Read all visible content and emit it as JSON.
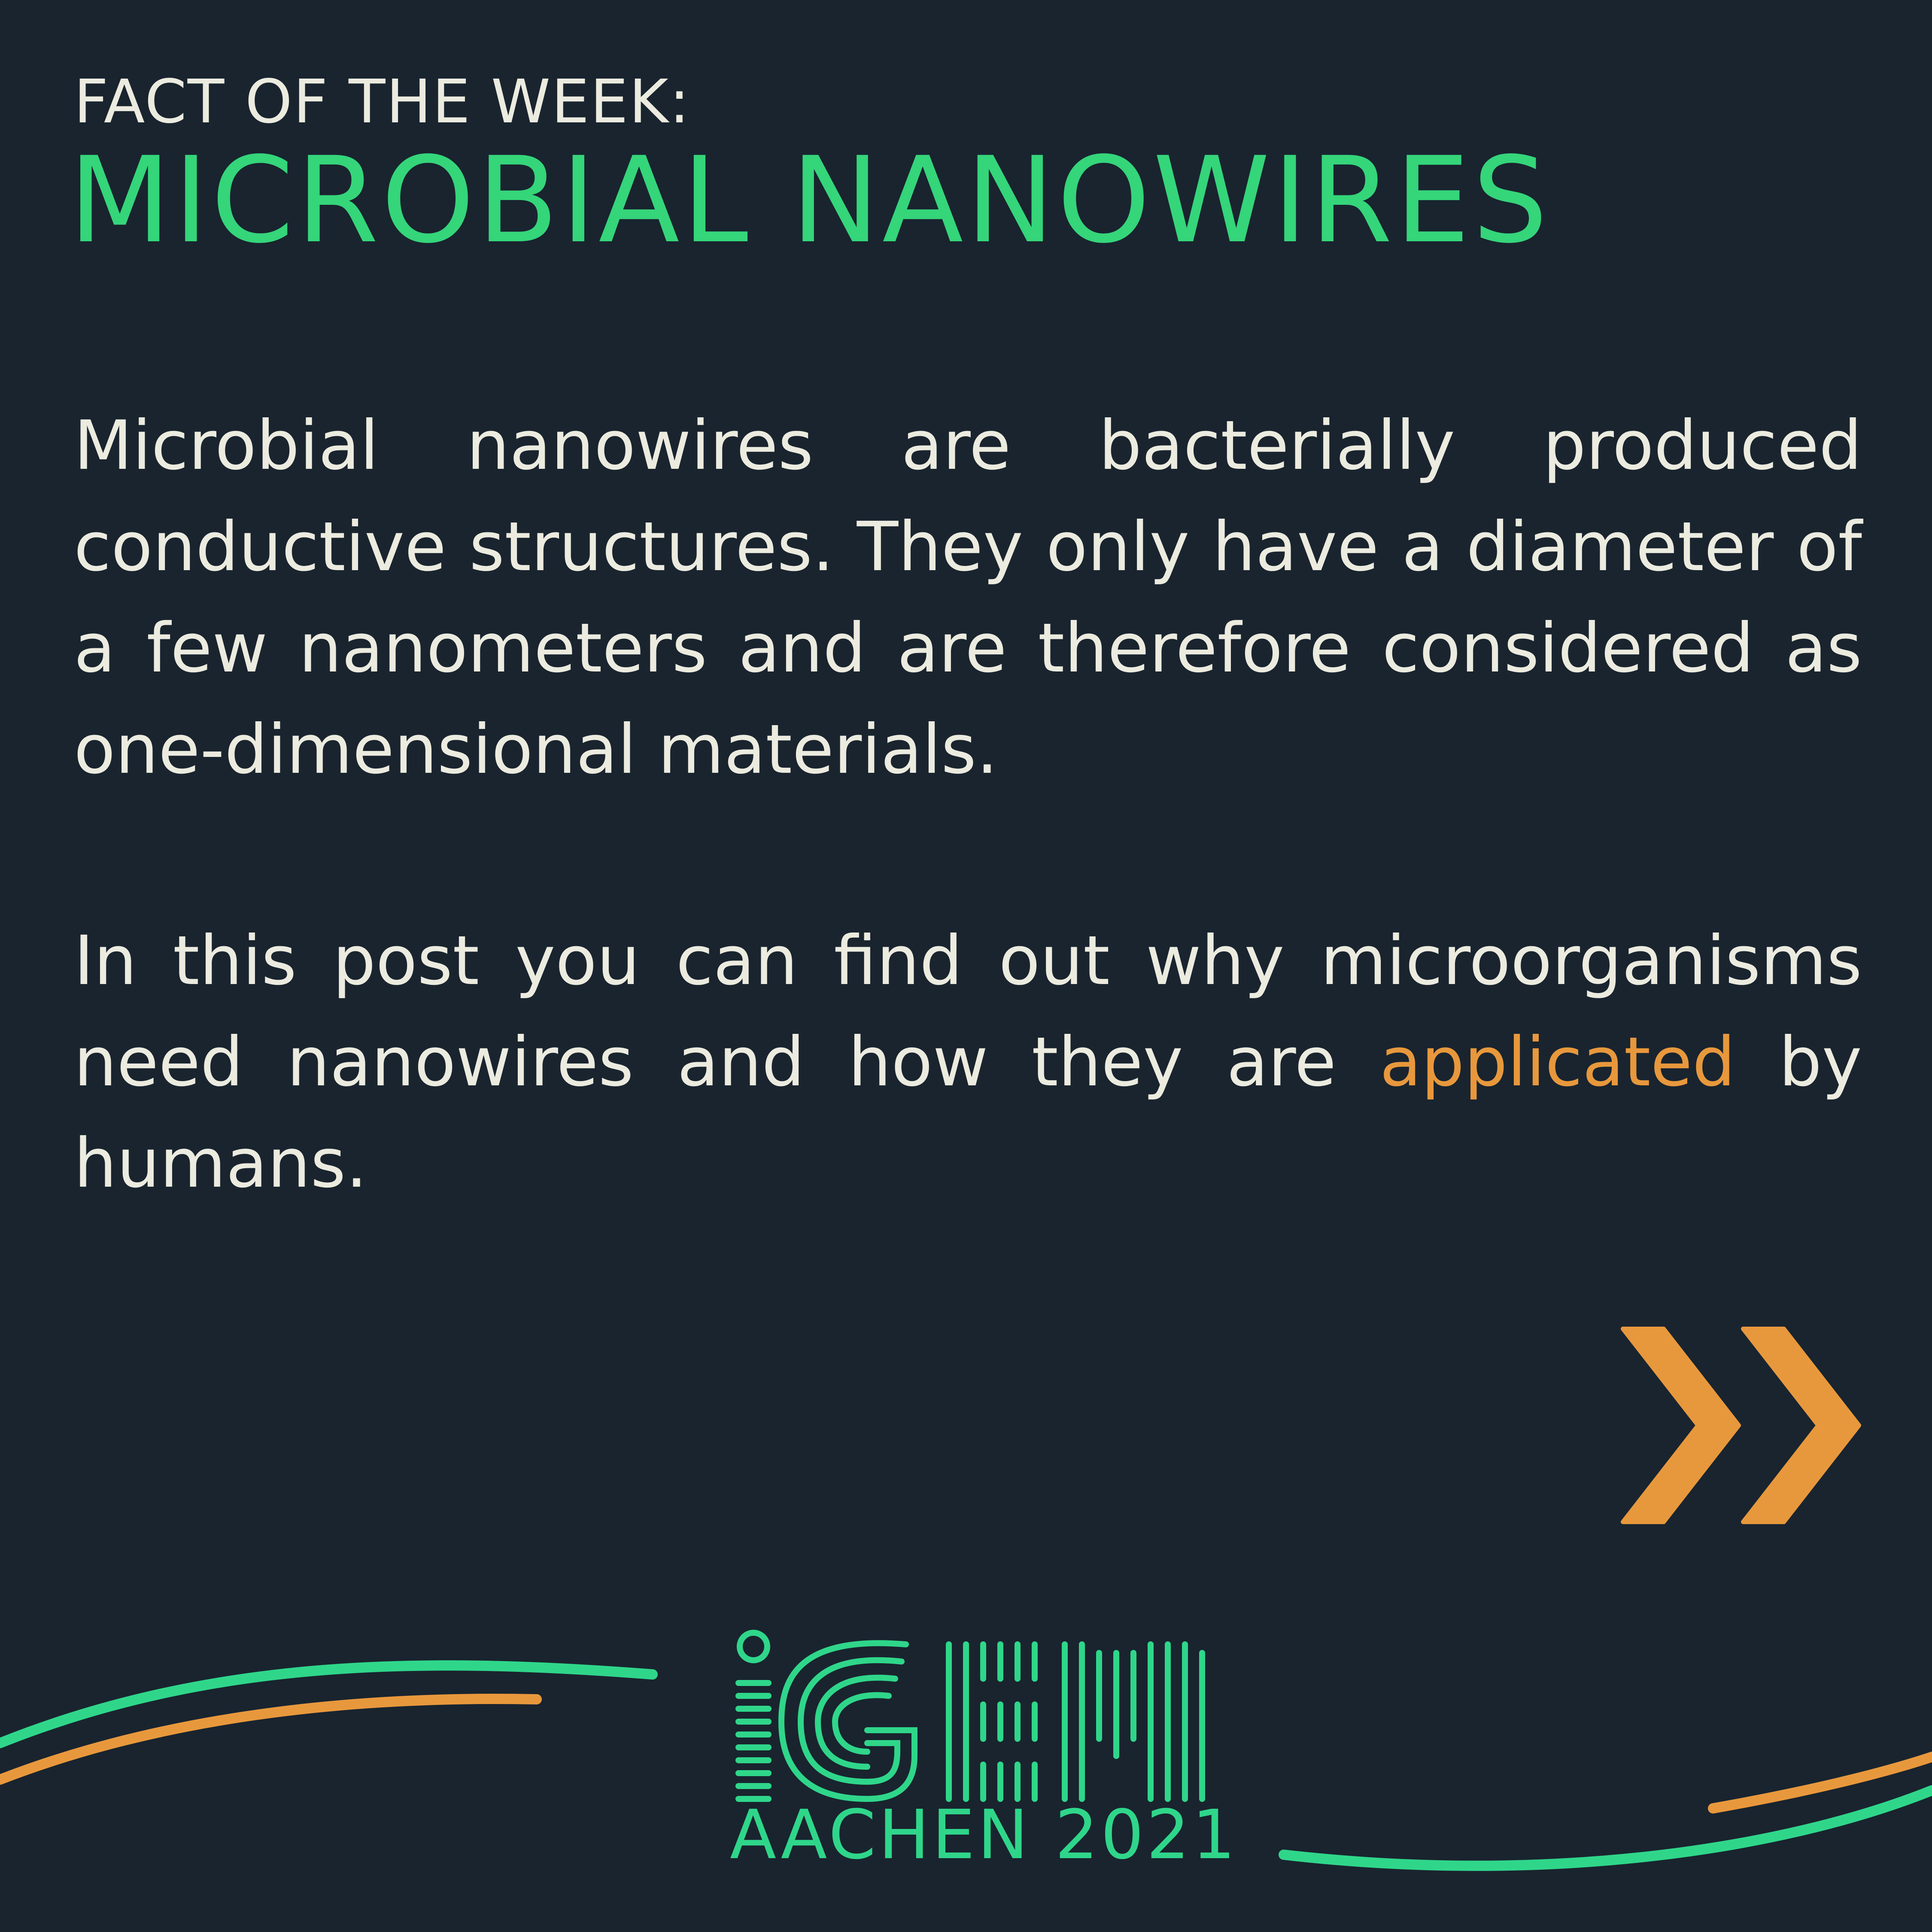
{
  "header": {
    "kicker": "FACT OF THE WEEK:",
    "title": "MICROBIAL NANOWIRES"
  },
  "paragraph_1": "Microbial nanowires are bacterially produced conductive structures. They only have a diameter of a few nanometers and are therefore considered as one-dimensional materials.",
  "paragraph_2": {
    "before": "In this post you can find out why microorganisms need nanowires and how they are ",
    "highlight": "applicated",
    "after": " by humans."
  },
  "next_indicator": {
    "icon": "double-chevron-right-icon",
    "color": "#e8983c"
  },
  "logo": {
    "wordmark": "iGEM",
    "subtitle": "AACHEN 2021",
    "color": "#2fd68a"
  },
  "colors": {
    "background": "#19242f",
    "text": "#ecebdf",
    "accent_green": "#35d57a",
    "accent_orange": "#e8983c"
  }
}
